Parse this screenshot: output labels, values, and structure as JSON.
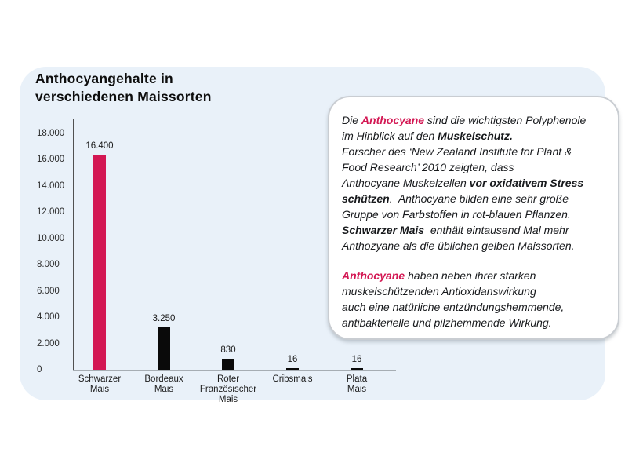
{
  "title": {
    "line1": "Anthocyangehalte in",
    "line2": "verschiedenen Maissorten"
  },
  "chart_data": {
    "type": "bar",
    "title": "Anthocyangehalte in verschiedenen Maissorten",
    "categories": [
      "Schwarzer Mais",
      "Bordeaux Mais",
      "Roter Französischer Mais",
      "Cribsmais",
      "Plata Mais"
    ],
    "category_label_lines": [
      [
        "Schwarzer",
        "Mais"
      ],
      [
        "Bordeaux",
        "Mais"
      ],
      [
        "Roter",
        "Französischer",
        "Mais"
      ],
      [
        "Cribsmais"
      ],
      [
        "Plata",
        "Mais"
      ]
    ],
    "values": [
      16400,
      3250,
      830,
      16,
      16
    ],
    "value_labels": [
      "16.400",
      "3.250",
      "830",
      "16",
      "16"
    ],
    "bar_colors": [
      "#d31753",
      "#0a0a0a",
      "#0a0a0a",
      "#0a0a0a",
      "#0a0a0a"
    ],
    "xlabel": "",
    "ylabel": "",
    "ylim": [
      0,
      18000
    ],
    "yticks": [
      {
        "value": 18000,
        "label": "18.000"
      },
      {
        "value": 16000,
        "label": "16.000"
      },
      {
        "value": 14000,
        "label": "14.000"
      },
      {
        "value": 12000,
        "label": "12.000"
      },
      {
        "value": 10000,
        "label": "10.000"
      },
      {
        "value": 8000,
        "label": "8.000"
      },
      {
        "value": 6000,
        "label": "6.000"
      },
      {
        "value": 4000,
        "label": "4.000"
      },
      {
        "value": 2000,
        "label": "2.000"
      },
      {
        "value": 0,
        "label": "0"
      }
    ],
    "grid": false,
    "legend": "none"
  },
  "infobox": {
    "paragraph1": [
      {
        "t": "Die ",
        "s": "n"
      },
      {
        "t": "Anthocyane",
        "s": "p"
      },
      {
        "t": " sind die wichtigsten Polyphenole",
        "s": "n"
      },
      {
        "br": true
      },
      {
        "t": "im Hinblick auf den ",
        "s": "n"
      },
      {
        "t": "Muskelschutz.",
        "s": "b"
      },
      {
        "br": true
      },
      {
        "t": "Forscher des ‘New Zealand Institute for Plant &",
        "s": "n"
      },
      {
        "br": true
      },
      {
        "t": "Food Research’ 2010 zeigten, dass",
        "s": "n"
      },
      {
        "br": true
      },
      {
        "t": "Anthocyane Muskelzellen ",
        "s": "n"
      },
      {
        "t": "vor oxidativem Stress",
        "s": "b"
      },
      {
        "br": true
      },
      {
        "t": "schützen",
        "s": "b"
      },
      {
        "t": ".  Anthocyane bilden eine sehr große",
        "s": "n"
      },
      {
        "br": true
      },
      {
        "t": "Gruppe von Farbstoffen in rot-blauen Pflanzen.",
        "s": "n"
      },
      {
        "br": true
      },
      {
        "t": "Schwarzer Mais",
        "s": "b"
      },
      {
        "t": "  enthält eintausend Mal mehr",
        "s": "n"
      },
      {
        "br": true
      },
      {
        "t": "Anthozyane als die üblichen gelben Maissorten.",
        "s": "n"
      }
    ],
    "paragraph2": [
      {
        "t": "Anthocyane",
        "s": "p"
      },
      {
        "t": " haben neben ihrer starken",
        "s": "n"
      },
      {
        "br": true
      },
      {
        "t": "muskelschützenden Antioxidanswirkung",
        "s": "n"
      },
      {
        "br": true
      },
      {
        "t": "auch eine natürliche entzündungshemmende,",
        "s": "n"
      },
      {
        "br": true
      },
      {
        "t": "antibakterielle und pilzhemmende Wirkung.",
        "s": "n"
      }
    ]
  },
  "colors": {
    "accent_pink": "#d31753",
    "bar_black": "#0a0a0a",
    "card_bg": "#e9f1f9",
    "infobox_border": "#c9cdd2",
    "axis_dark": "#515151",
    "axis_light": "#a6adb3"
  }
}
